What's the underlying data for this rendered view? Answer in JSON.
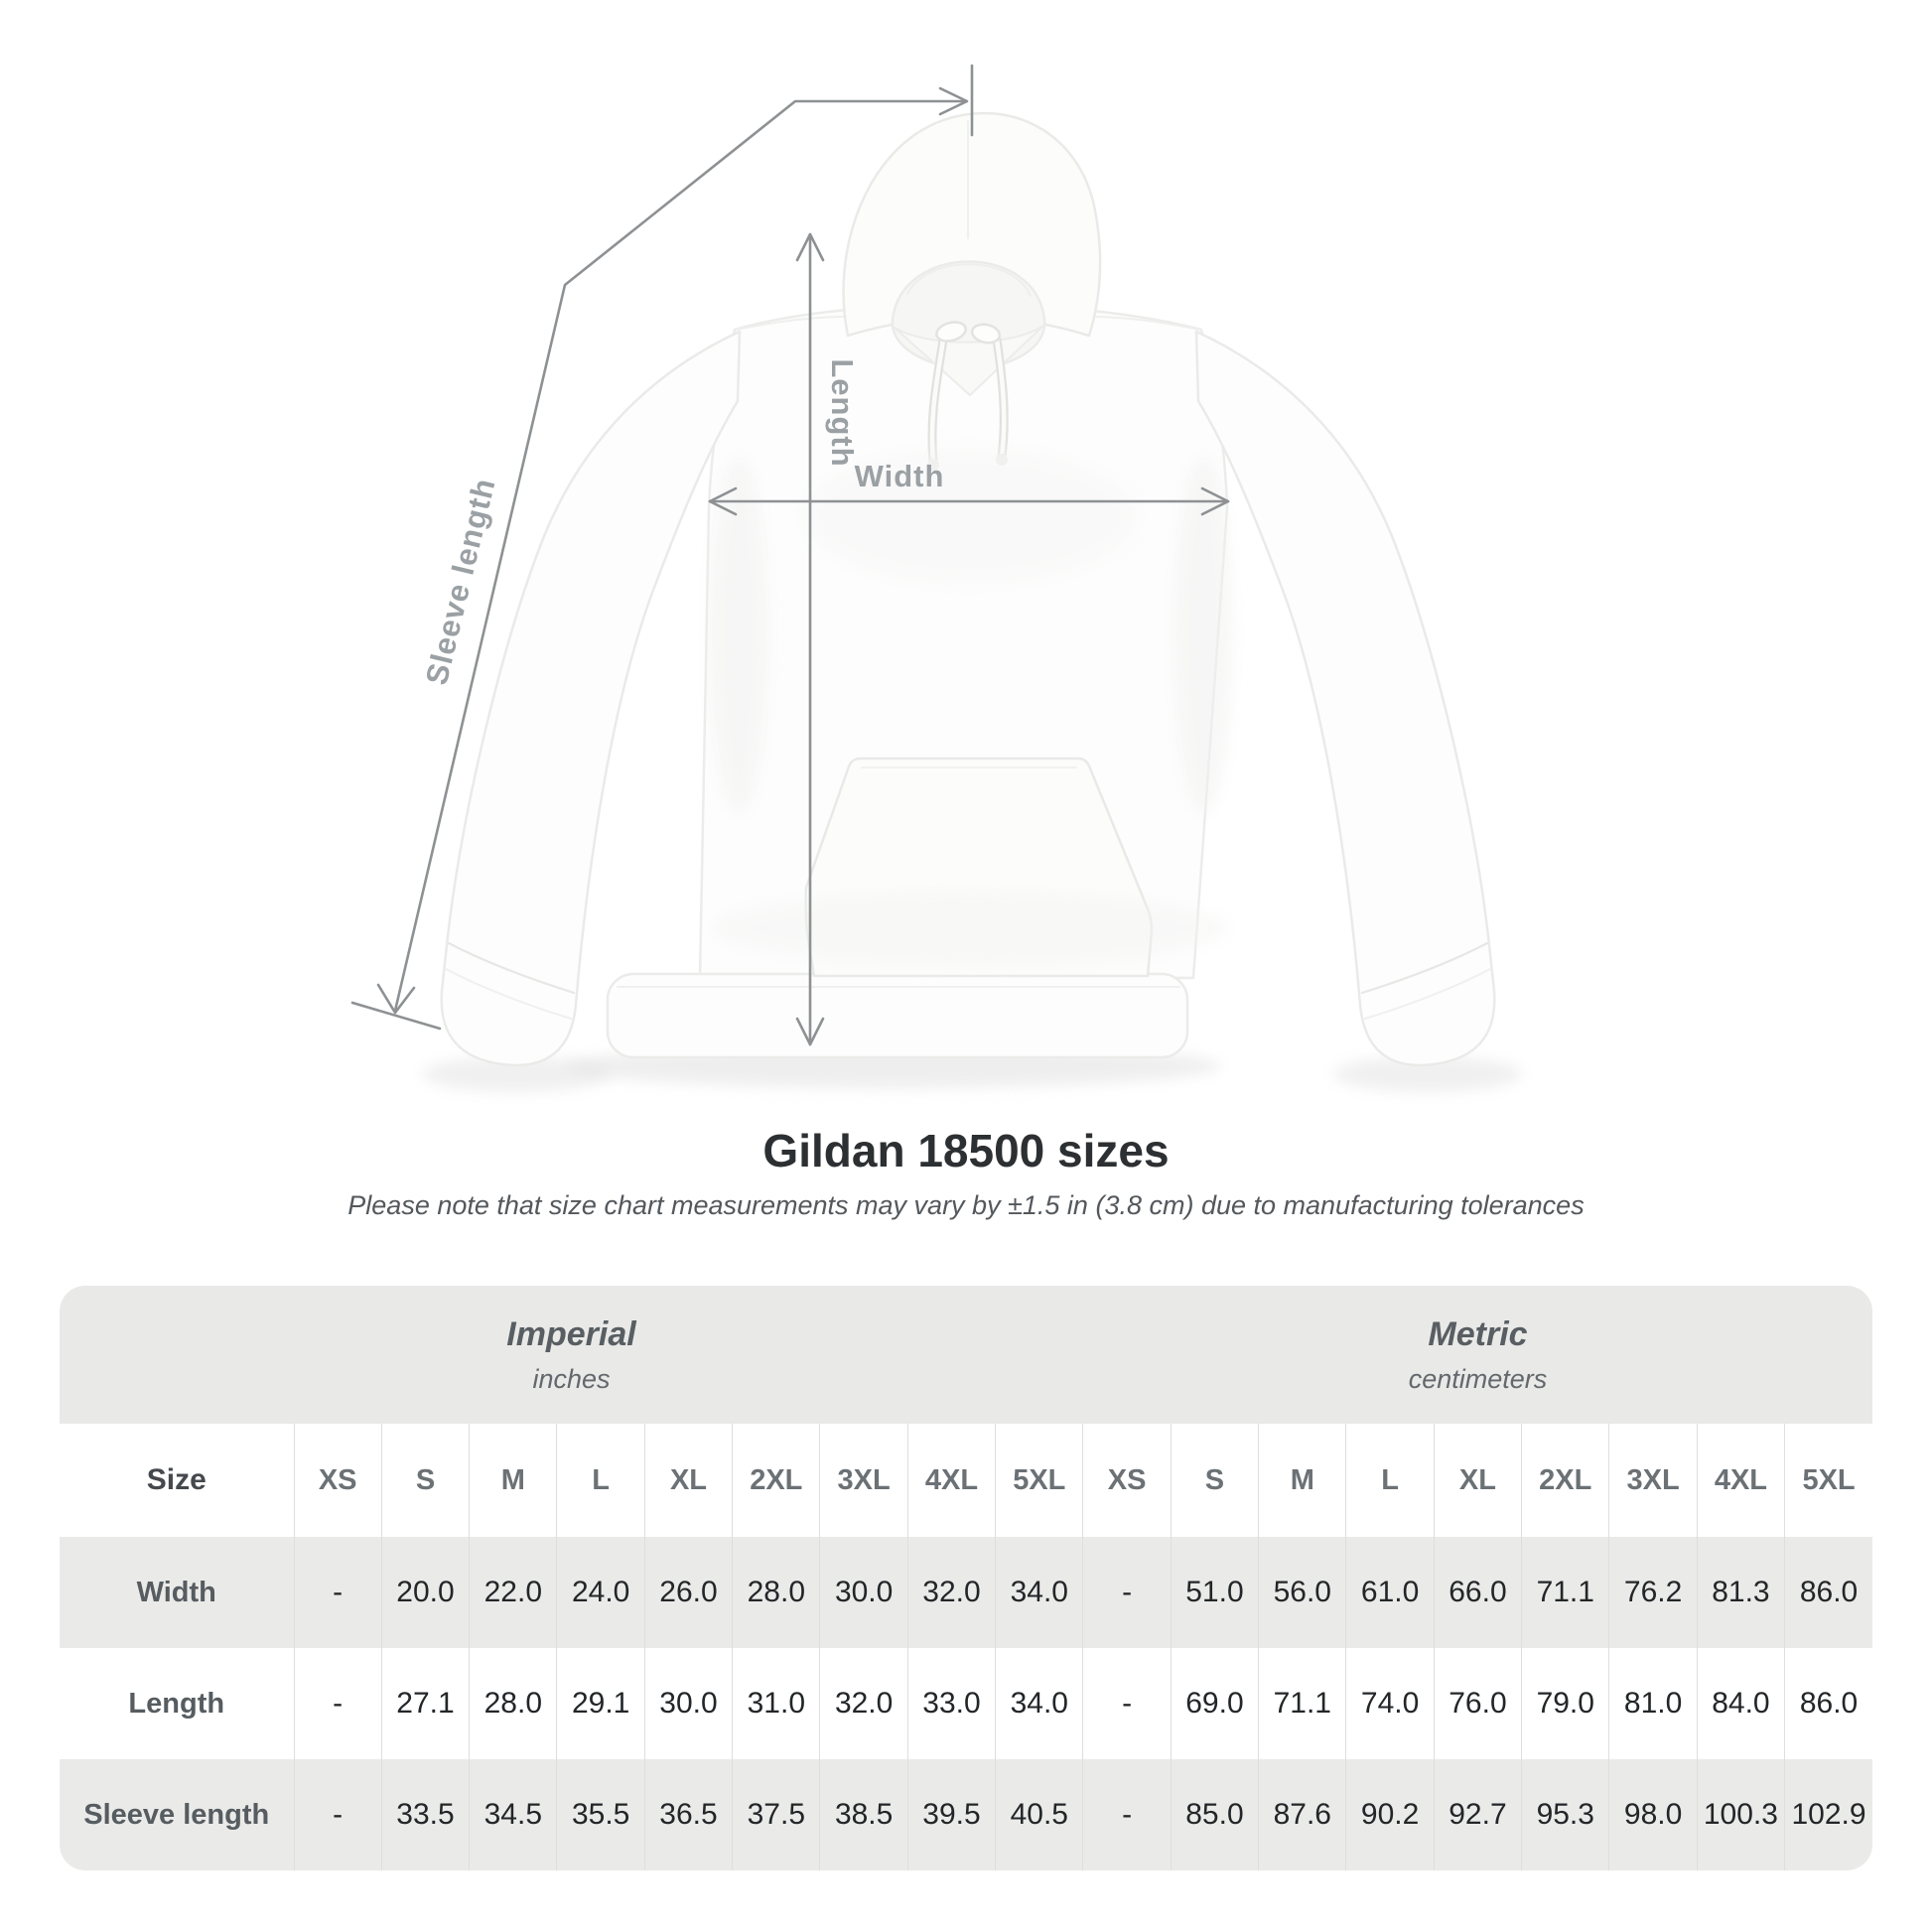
{
  "diagram": {
    "length_label": "Length",
    "width_label": "Width",
    "sleeve_label": "Sleeve length",
    "line_color": "#8e9193",
    "label_color": "#9aa0a3"
  },
  "header": {
    "title": "Gildan 18500 sizes",
    "subtitle": "Please note that size chart measurements may vary by ±1.5 in (3.8 cm) due to manufacturing tolerances"
  },
  "table": {
    "groups": [
      {
        "label": "Imperial",
        "unit": "inches"
      },
      {
        "label": "Metric",
        "unit": "centimeters"
      }
    ],
    "size_header": "Size",
    "columns": [
      "XS",
      "S",
      "M",
      "L",
      "XL",
      "2XL",
      "3XL",
      "4XL",
      "5XL",
      "XS",
      "S",
      "M",
      "L",
      "XL",
      "2XL",
      "3XL",
      "4XL",
      "5XL"
    ],
    "rows": [
      {
        "label": "Width",
        "values": [
          "-",
          "20.0",
          "22.0",
          "24.0",
          "26.0",
          "28.0",
          "30.0",
          "32.0",
          "34.0",
          "-",
          "51.0",
          "56.0",
          "61.0",
          "66.0",
          "71.1",
          "76.2",
          "81.3",
          "86.0"
        ]
      },
      {
        "label": "Length",
        "values": [
          "-",
          "27.1",
          "28.0",
          "29.1",
          "30.0",
          "31.0",
          "32.0",
          "33.0",
          "34.0",
          "-",
          "69.0",
          "71.1",
          "74.0",
          "76.0",
          "79.0",
          "81.0",
          "84.0",
          "86.0"
        ]
      },
      {
        "label": "Sleeve length",
        "values": [
          "-",
          "33.5",
          "34.5",
          "35.5",
          "36.5",
          "37.5",
          "38.5",
          "39.5",
          "40.5",
          "-",
          "85.0",
          "87.6",
          "90.2",
          "92.7",
          "95.3",
          "98.0",
          "100.3",
          "102.9"
        ]
      }
    ]
  }
}
